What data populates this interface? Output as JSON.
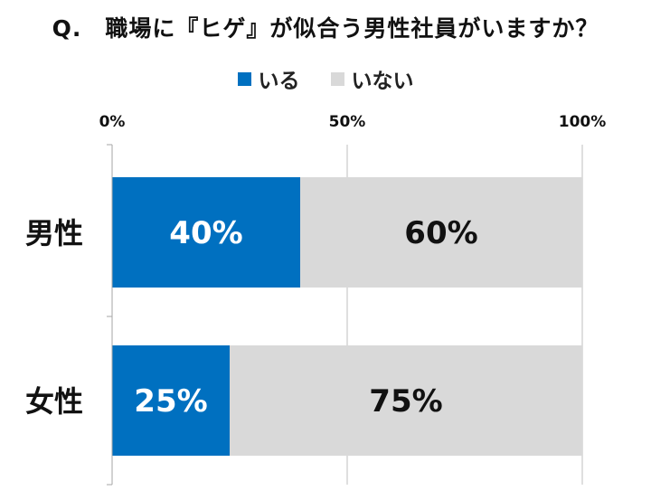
{
  "chart_data": {
    "type": "bar",
    "orientation": "horizontal",
    "stacked": true,
    "title": "Q.　職場に『ヒゲ』が似合う男性社員がいますか？",
    "categories": [
      "男性",
      "女性"
    ],
    "series": [
      {
        "name": "いる",
        "values": [
          40,
          25
        ],
        "labels": [
          "40%",
          "25%"
        ],
        "color": "#0070c0",
        "label_color": "#ffffff"
      },
      {
        "name": "いない",
        "values": [
          60,
          75
        ],
        "labels": [
          "60%",
          "75%"
        ],
        "color": "#d9d9d9",
        "label_color": "#111111"
      }
    ],
    "xlim": [
      0,
      100
    ],
    "xticks": [
      0,
      50,
      100
    ],
    "xtick_labels": [
      "0%",
      "50%",
      "100%"
    ],
    "xaxis_position": "top",
    "grid": true,
    "legend_position": "top-center"
  }
}
